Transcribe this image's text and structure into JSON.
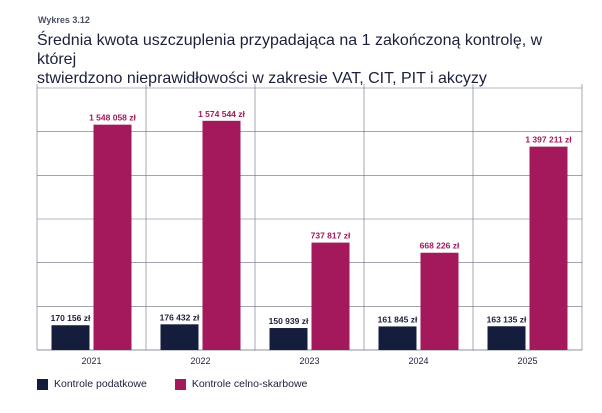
{
  "caption": "Wykres 3.12",
  "title_lines": [
    "Średnia kwota uszczuplenia przypadająca na 1 zakończoną kontrolę, w której",
    "stwierdzono nieprawidłowości w zakresie VAT, CIT, PIT i akcyzy"
  ],
  "colors": {
    "podatkowe": "#141d3b",
    "celno_skarbowe": "#a3195b",
    "grid": "#6a6f82",
    "text": "#1b1f3b"
  },
  "chart_data": {
    "type": "bar",
    "categories": [
      "2021",
      "2022",
      "2023",
      "2024",
      "2025"
    ],
    "series": [
      {
        "name": "Kontrole podatkowe",
        "values": [
          170156,
          176432,
          150939,
          161845,
          163135
        ],
        "labels": [
          "170 156 zł",
          "176 432 zł",
          "150 939 zł",
          "161 845 zł",
          "163 135 zł"
        ]
      },
      {
        "name": "Kontrole celno-skarbowe",
        "values": [
          1548058,
          1574544,
          737817,
          668226,
          1397211
        ],
        "labels": [
          "1 548 058 zł",
          "1 574 544 zł",
          "737 817 zł",
          "668 226 zł",
          "1 397 211 zł"
        ]
      }
    ],
    "ylim": [
      0,
      1800000
    ],
    "grid": true,
    "legend_position": "bottom-left"
  }
}
